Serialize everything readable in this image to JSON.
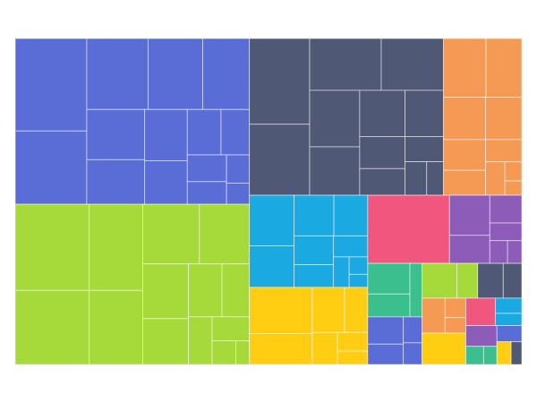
{
  "chart_data": {
    "type": "treemap",
    "series": [
      {
        "color": "#5a6dd6",
        "values": [
          8.2,
          6.5,
          5.4,
          4.8,
          4.1,
          3.6,
          3.2,
          2.7,
          2.3,
          1.9,
          1.6,
          1.3,
          1.1,
          0.8,
          0.6
        ]
      },
      {
        "color": "#a6d93a",
        "values": [
          7.9,
          6.8,
          5.7,
          4.9,
          4.2,
          3.7,
          3.1,
          2.6,
          2.2,
          1.8,
          1.4,
          1.1,
          0.7,
          0.4
        ]
      },
      {
        "color": "#4f5874",
        "values": [
          6.4,
          5.3,
          4.6,
          4.0,
          3.5,
          3.0,
          2.6,
          2.2,
          1.8,
          1.5,
          1.2,
          0.9,
          0.7
        ]
      },
      {
        "color": "#f59a55",
        "values": [
          3.1,
          2.6,
          2.2,
          1.9,
          1.6,
          1.3,
          1.0,
          0.8,
          0.4,
          0.3
        ]
      },
      {
        "color": "#1aa9e0",
        "values": [
          2.8,
          2.3,
          2.0,
          1.7,
          1.4,
          1.1,
          0.9,
          0.6,
          0.4,
          0.3
        ]
      },
      {
        "color": "#ffcd12",
        "values": [
          3.6,
          2.4,
          1.8,
          1.3,
          1.0,
          0.7,
          0.5
        ]
      },
      {
        "color": "#f0567e",
        "values": [
          6.9
        ]
      },
      {
        "color": "#8d5bb8",
        "values": [
          2.0,
          1.4,
          1.1,
          0.7,
          0.5,
          0.4
        ]
      },
      {
        "color": "#3cbf8f",
        "values": [
          1.6,
          1.2,
          0.8
        ]
      },
      {
        "color": "#5a6dd6",
        "values": [
          1.2,
          0.9,
          0.6,
          0.5
        ]
      },
      {
        "color": "#a6d93a",
        "values": [
          1.5,
          0.9
        ]
      },
      {
        "color": "#4f5874",
        "values": [
          1.1,
          0.8
        ]
      },
      {
        "color": "#f59a55",
        "values": [
          1.0,
          0.5,
          0.4
        ]
      },
      {
        "color": "#ffcd12",
        "values": [
          1.7
        ]
      },
      {
        "color": "#f0567e",
        "values": [
          1.0
        ]
      },
      {
        "color": "#1aa9e0",
        "values": [
          0.5,
          0.4
        ]
      },
      {
        "color": "#8d5bb8",
        "values": [
          0.8
        ]
      },
      {
        "color": "#3cbf8f",
        "values": [
          0.4,
          0.3
        ]
      },
      {
        "color": "#5a6dd6",
        "values": [
          0.5
        ]
      },
      {
        "color": "#ffcd12",
        "values": [
          0.4
        ]
      },
      {
        "color": "#4f5874",
        "values": [
          0.3
        ]
      }
    ]
  }
}
